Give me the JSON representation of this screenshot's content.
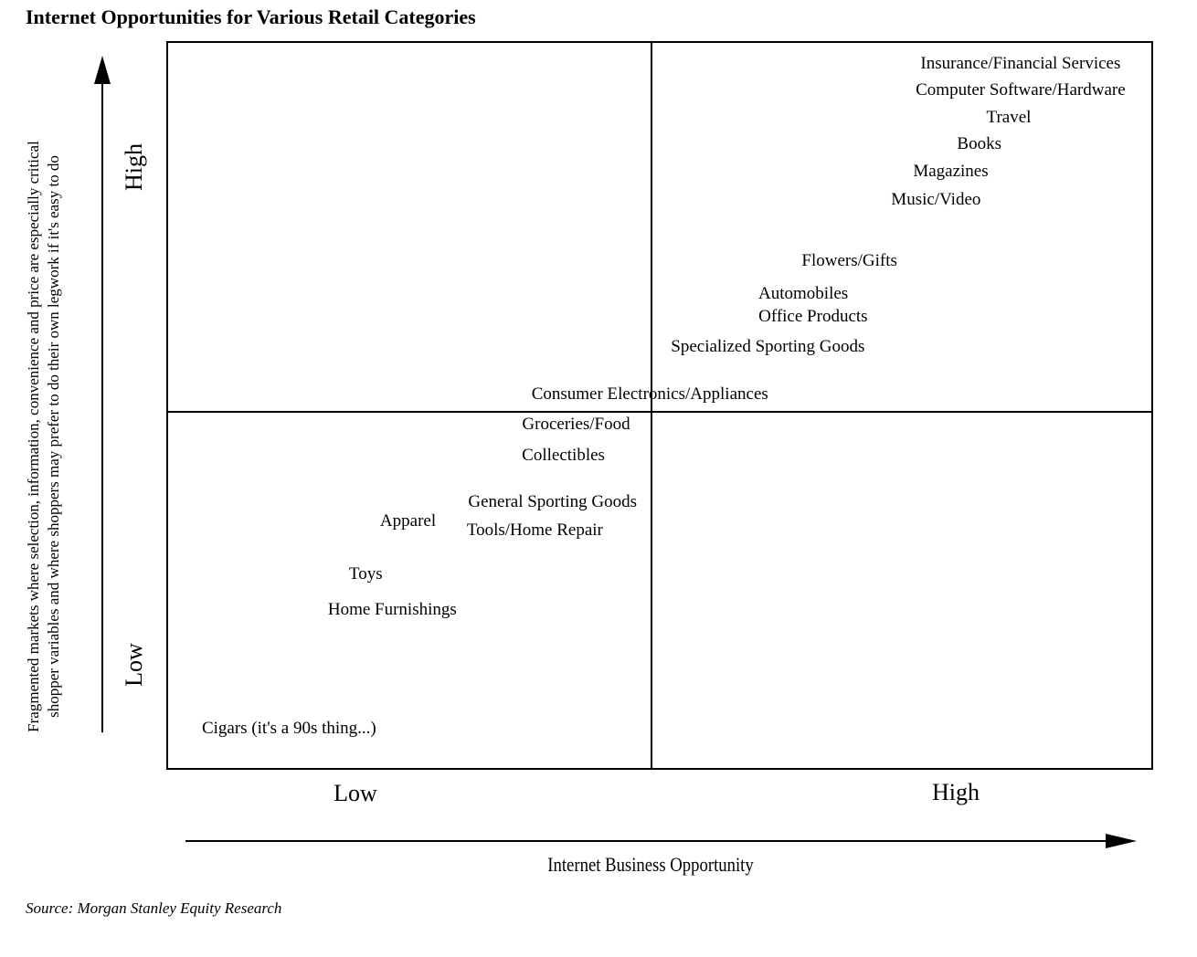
{
  "title": "Internet Opportunities for Various Retail Categories",
  "source_note": "Source: Morgan Stanley Equity Research",
  "colors": {
    "ink": "#000000",
    "background": "#ffffff"
  },
  "y_axis": {
    "caption_line1": "Fragmented markets where selection, information, convenience and price are especially critical",
    "caption_line2": "shopper variables and where shoppers may prefer to do their own legwork if it's easy to do",
    "high_label": "High",
    "low_label": "Low"
  },
  "x_axis": {
    "label": "Internet Business Opportunity",
    "low_label": "Low",
    "high_label": "High"
  },
  "chart_data": {
    "type": "scatter",
    "title": "Internet Opportunities for Various Retail Categories",
    "xlabel": "Internet Business Opportunity",
    "ylabel": "Fragmented markets where selection, information, convenience and price are especially critical shopper variables and where shoppers may prefer to do their own legwork if it's easy to do",
    "x_ticks": [
      "Low",
      "High"
    ],
    "y_ticks": [
      "Low",
      "High"
    ],
    "x_range": [
      0,
      1
    ],
    "y_range": [
      0,
      1
    ],
    "grid": "quadrant dividers at x=0.491 and y=0.492",
    "legend": "none",
    "points": [
      {
        "label": "Insurance/Financial Services",
        "x": 0.867,
        "y": 0.971,
        "quadrant": "high-high"
      },
      {
        "label": "Computer Software/Hardware",
        "x": 0.867,
        "y": 0.934,
        "quadrant": "high-high"
      },
      {
        "label": "Travel",
        "x": 0.855,
        "y": 0.897,
        "quadrant": "high-high"
      },
      {
        "label": "Books",
        "x": 0.825,
        "y": 0.86,
        "quadrant": "high-high"
      },
      {
        "label": "Magazines",
        "x": 0.796,
        "y": 0.822,
        "quadrant": "high-high"
      },
      {
        "label": "Music/Video",
        "x": 0.781,
        "y": 0.783,
        "quadrant": "high-high"
      },
      {
        "label": "Flowers/Gifts",
        "x": 0.693,
        "y": 0.699,
        "quadrant": "high-high"
      },
      {
        "label": "Automobiles",
        "x": 0.646,
        "y": 0.654,
        "quadrant": "high-high"
      },
      {
        "label": "Office Products",
        "x": 0.656,
        "y": 0.622,
        "quadrant": "high-high"
      },
      {
        "label": "Specialized Sporting Goods",
        "x": 0.61,
        "y": 0.58,
        "quadrant": "high-high"
      },
      {
        "label": "Consumer Electronics/Appliances",
        "x": 0.49,
        "y": 0.515,
        "quadrant": "boundary"
      },
      {
        "label": "Groceries/Food",
        "x": 0.415,
        "y": 0.474,
        "quadrant": "low-low"
      },
      {
        "label": "Collectibles",
        "x": 0.402,
        "y": 0.431,
        "quadrant": "low-low"
      },
      {
        "label": "General Sporting Goods",
        "x": 0.391,
        "y": 0.367,
        "quadrant": "low-low"
      },
      {
        "label": "Apparel",
        "x": 0.244,
        "y": 0.34,
        "quadrant": "low-low"
      },
      {
        "label": "Tools/Home Repair",
        "x": 0.373,
        "y": 0.328,
        "quadrant": "low-low"
      },
      {
        "label": "Toys",
        "x": 0.201,
        "y": 0.267,
        "quadrant": "low-low"
      },
      {
        "label": "Home Furnishings",
        "x": 0.228,
        "y": 0.218,
        "quadrant": "low-low"
      },
      {
        "label": "Cigars (it's a 90s thing...)",
        "x": 0.123,
        "y": 0.054,
        "quadrant": "low-low"
      }
    ]
  }
}
